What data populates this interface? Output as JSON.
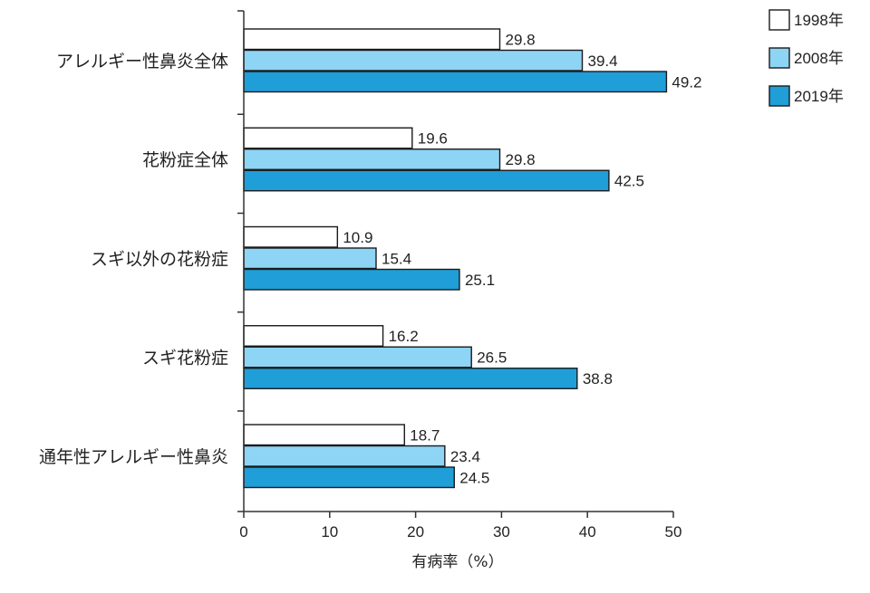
{
  "chart_data": {
    "type": "bar",
    "orientation": "horizontal",
    "categories": [
      "アレルギー性鼻炎全体",
      "花粉症全体",
      "スギ以外の花粉症",
      "スギ花粉症",
      "通年性アレルギー性鼻炎"
    ],
    "series": [
      {
        "name": "1998年",
        "color": "#ffffff",
        "values": [
          29.8,
          19.6,
          10.9,
          16.2,
          18.7
        ]
      },
      {
        "name": "2008年",
        "color": "#8ed4f5",
        "values": [
          39.4,
          29.8,
          15.4,
          26.5,
          23.4
        ]
      },
      {
        "name": "2019年",
        "color": "#1f9ed8",
        "values": [
          49.2,
          42.5,
          25.1,
          38.8,
          24.5
        ]
      }
    ],
    "value_labels": [
      [
        "29.8",
        "19.6",
        "10.9",
        "16.2",
        "18.7"
      ],
      [
        "39.4",
        "29.8",
        "15.4",
        "26.5",
        "23.4"
      ],
      [
        "49.2",
        "42.5",
        "25.1",
        "38.8",
        "24.5"
      ]
    ],
    "xlabel": "有病率（%）",
    "xlim": [
      0,
      50
    ],
    "xticks": [
      0,
      10,
      20,
      30,
      40,
      50
    ],
    "xtick_labels": [
      "0",
      "10",
      "20",
      "30",
      "40",
      "50"
    ],
    "legend_placement": "top-right",
    "grid": false,
    "bar_outline_color": "#1a1a1a",
    "axis_color": "#333333"
  }
}
